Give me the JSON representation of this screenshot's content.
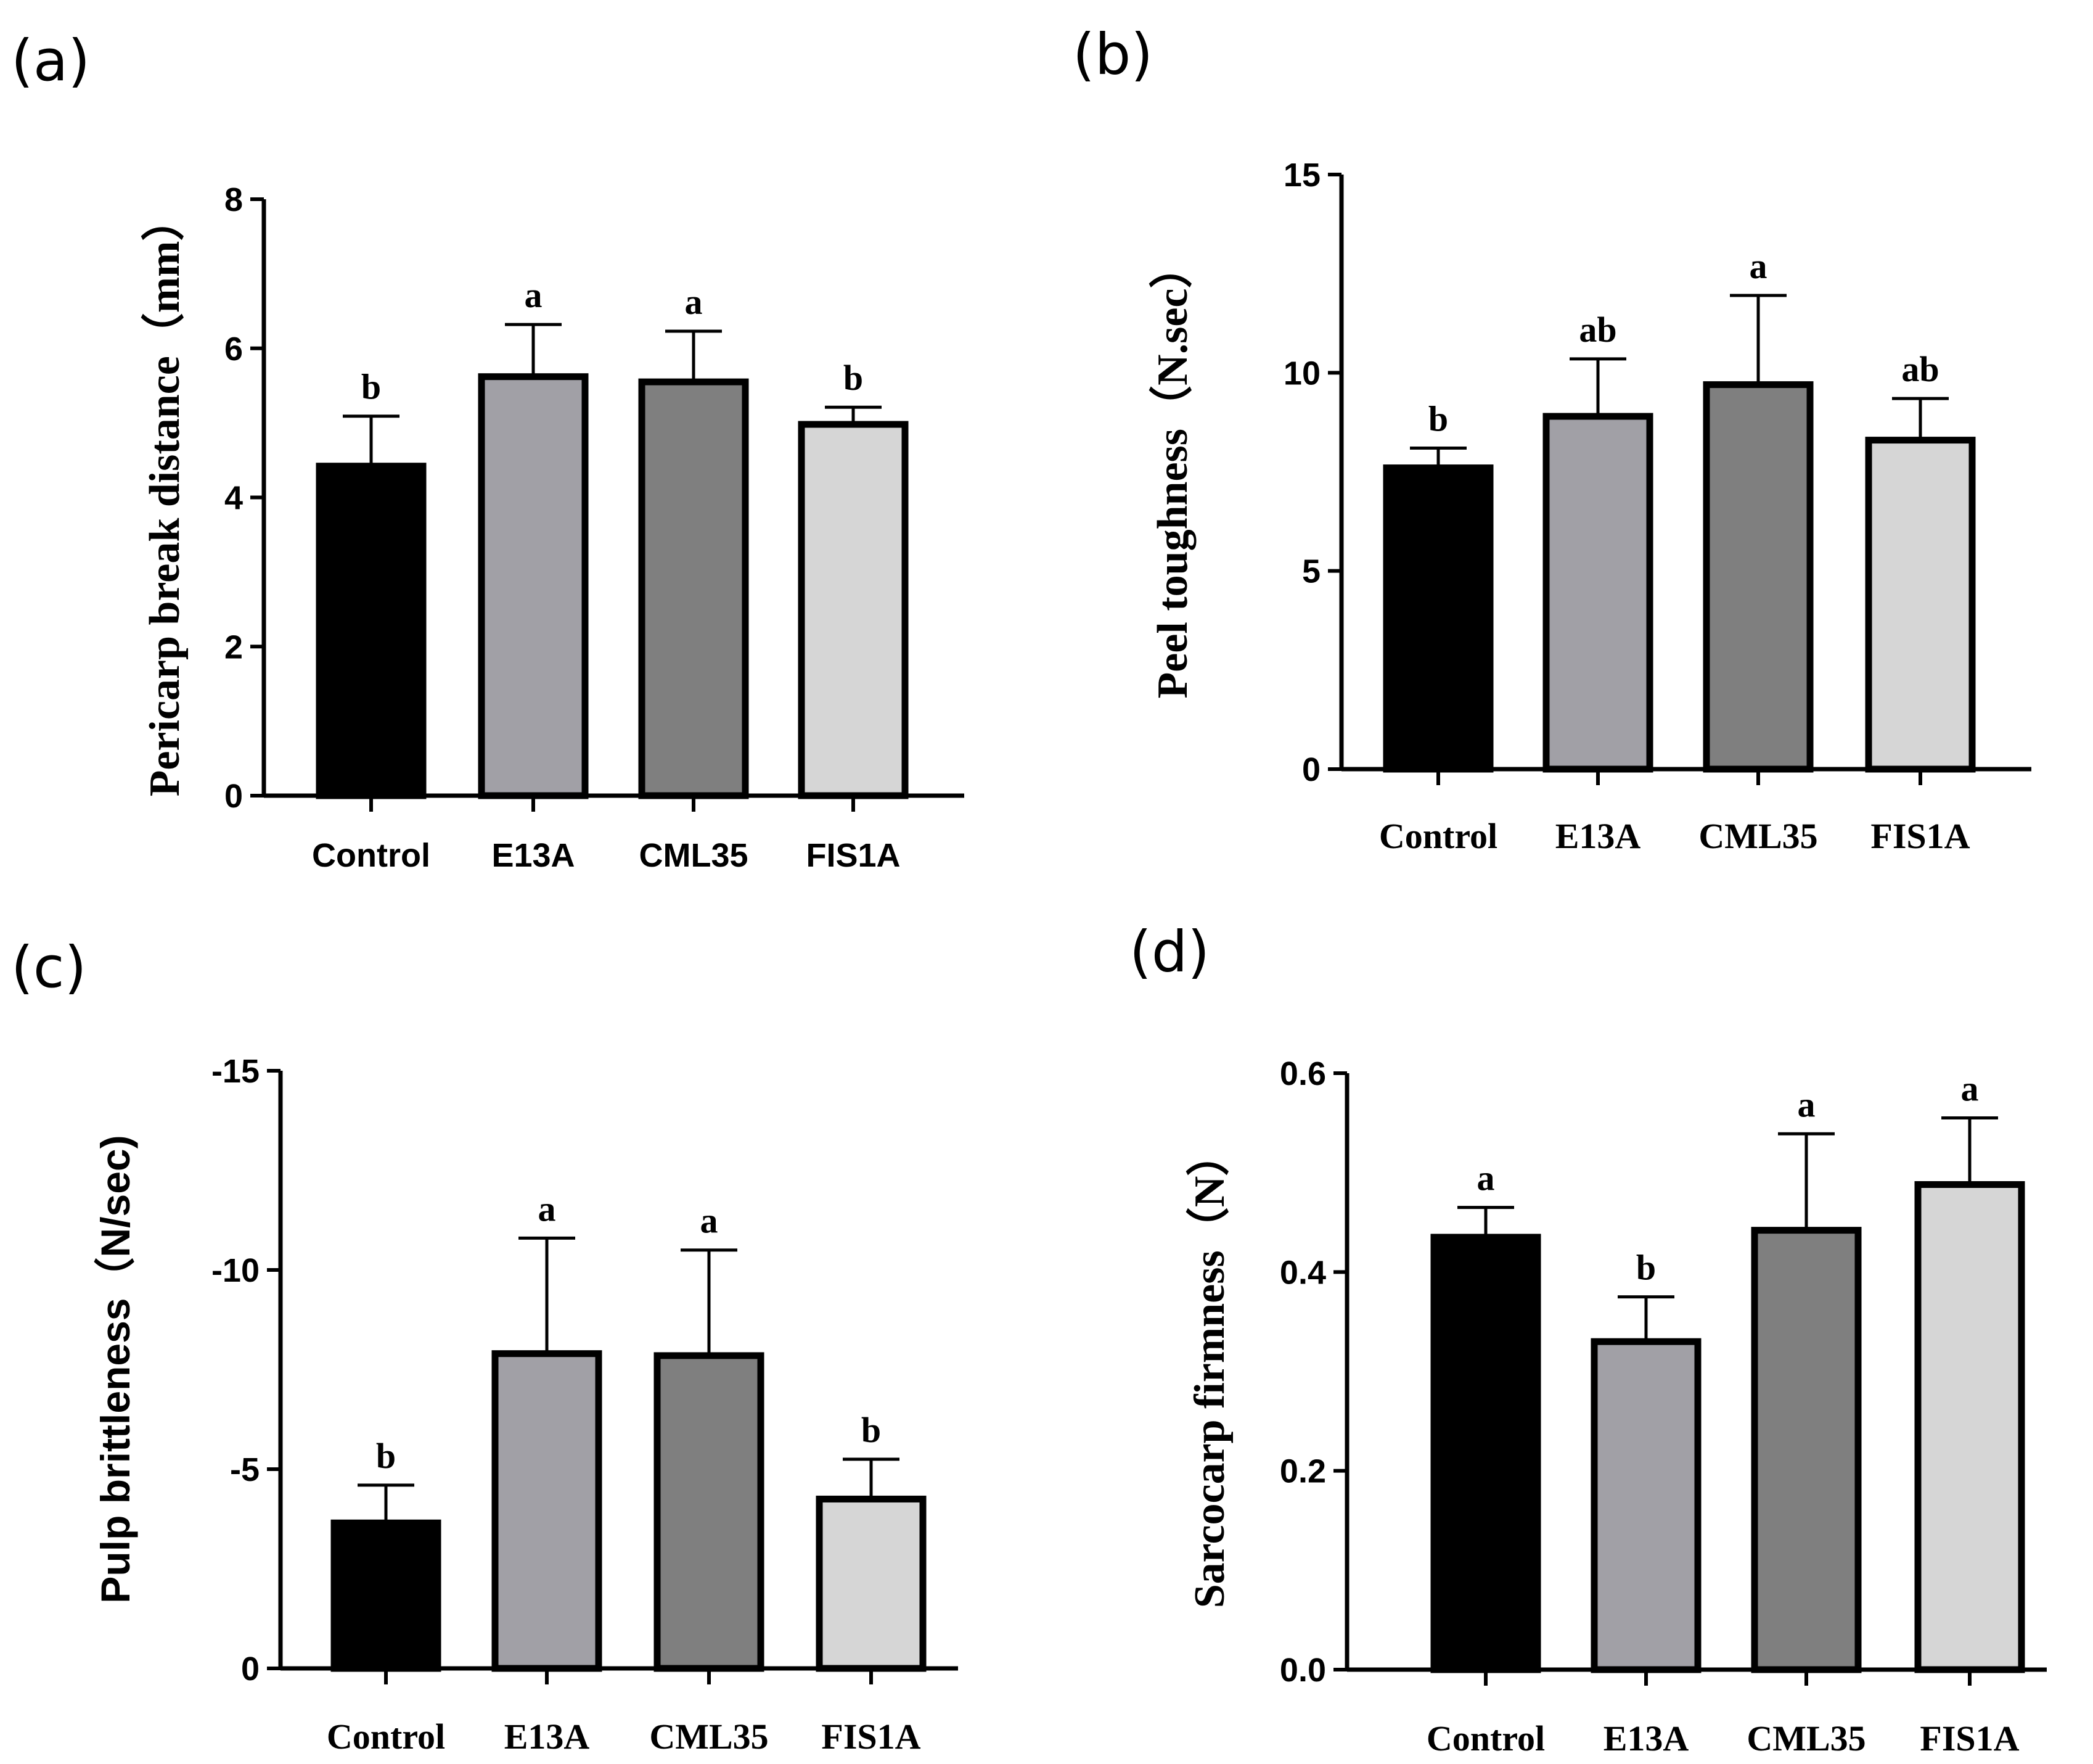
{
  "chart_data": [
    {
      "panel_label": "(a)",
      "type": "bar",
      "title": "",
      "xlabel": "",
      "ylabel": "Pericarp break distance（mm）",
      "categories": [
        "Control",
        "E13A",
        "CML35",
        "FIS1A"
      ],
      "values": [
        4.42,
        5.62,
        5.55,
        4.98
      ],
      "errors": [
        0.67,
        0.7,
        0.68,
        0.23
      ],
      "significance": [
        "b",
        "a",
        "a",
        "b"
      ],
      "colors": [
        "#000000",
        "#a1a0a6",
        "#7f7f7f",
        "#d6d6d6"
      ],
      "ylim": [
        0,
        8
      ],
      "yticks": [
        0,
        2,
        4,
        6,
        8
      ],
      "ytick_labels": [
        "0",
        "2",
        "4",
        "6",
        "8"
      ],
      "grid": false
    },
    {
      "panel_label": "(b)",
      "type": "bar",
      "title": "",
      "xlabel": "",
      "ylabel": "Peel toughness（N.sec）",
      "categories": [
        "Control",
        "E13A",
        "CML35",
        "FIS1A"
      ],
      "values": [
        7.6,
        8.9,
        9.7,
        8.3
      ],
      "errors": [
        0.5,
        1.45,
        2.25,
        1.05
      ],
      "significance": [
        "b",
        "ab",
        "a",
        "ab"
      ],
      "colors": [
        "#000000",
        "#a1a0a6",
        "#7f7f7f",
        "#d6d6d6"
      ],
      "ylim": [
        0,
        15
      ],
      "yticks": [
        0,
        5,
        10,
        15
      ],
      "ytick_labels": [
        "0",
        "5",
        "10",
        "15"
      ],
      "grid": false
    },
    {
      "panel_label": "(c)",
      "type": "bar",
      "title": "",
      "xlabel": "",
      "ylabel": "Pulp brittleness（N/sec)",
      "categories": [
        "Control",
        "E13A",
        "CML35",
        "FIS1A"
      ],
      "values": [
        -3.65,
        -7.9,
        -7.85,
        -4.25
      ],
      "errors": [
        0.95,
        2.9,
        2.65,
        1.0
      ],
      "significance": [
        "b",
        "a",
        "a",
        "b"
      ],
      "colors": [
        "#000000",
        "#a1a0a6",
        "#7f7f7f",
        "#d6d6d6"
      ],
      "ylim": [
        0,
        -15
      ],
      "yticks": [
        0,
        -5,
        -10,
        -15
      ],
      "ytick_labels": [
        "0",
        "-5",
        "-10",
        "-15"
      ],
      "grid": false
    },
    {
      "panel_label": "(d)",
      "type": "bar",
      "title": "",
      "xlabel": "",
      "ylabel": "Sarcocarp firmness（N）",
      "categories": [
        "Control",
        "E13A",
        "CML35",
        "FIS1A"
      ],
      "values": [
        0.435,
        0.33,
        0.442,
        0.488
      ],
      "errors": [
        0.03,
        0.045,
        0.097,
        0.067
      ],
      "significance": [
        "a",
        "b",
        "a",
        "a"
      ],
      "colors": [
        "#000000",
        "#a1a0a6",
        "#7f7f7f",
        "#d6d6d6"
      ],
      "ylim": [
        0,
        0.6
      ],
      "yticks": [
        0,
        0.2,
        0.4,
        0.6
      ],
      "ytick_labels": [
        "0.0",
        "0.2",
        "0.4",
        "0.6"
      ],
      "grid": false
    }
  ]
}
